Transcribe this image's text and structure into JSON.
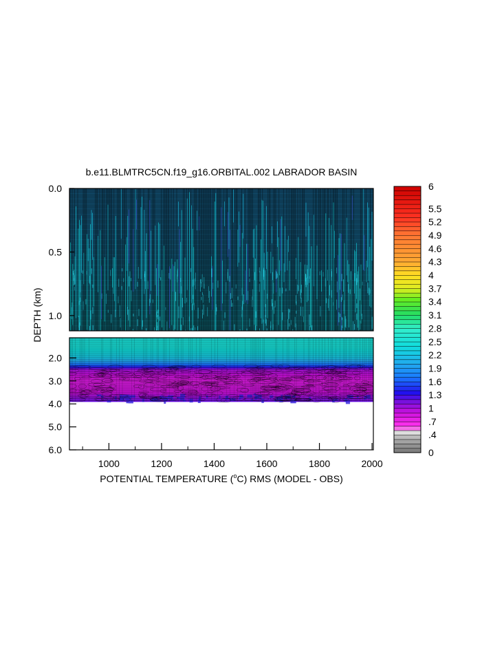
{
  "chart_data": {
    "type": "heatmap",
    "title": "b.e11.BLMTRC5CN.f19_g16.ORBITAL.002 LABRADOR BASIN",
    "xlabel_pre": "POTENTIAL TEMPERATURE (",
    "xlabel_unit_sup": "o",
    "xlabel_unit": "C",
    "xlabel_post": ") RMS (MODEL - OBS)",
    "ylabel": "DEPTH (km)",
    "xlim": [
      850,
      2005
    ],
    "x_ticks": [
      1000,
      1200,
      1400,
      1600,
      1800,
      2000
    ],
    "upper_panel": {
      "ylim": [
        0.0,
        1.12
      ],
      "y_ticks": [
        0.0,
        0.5,
        1.0
      ],
      "y_tick_labels": [
        "0.0",
        "0.5",
        "1.0"
      ]
    },
    "lower_panel": {
      "ylim": [
        1.12,
        6.0
      ],
      "y_ticks": [
        2.0,
        3.0,
        4.0,
        5.0,
        6.0
      ],
      "y_tick_labels": [
        "2.0",
        "3.0",
        "4.0",
        "5.0",
        "6.0"
      ],
      "data_bottom_depth": 3.9
    },
    "depth_profile": [
      {
        "depth": 0.0,
        "value": 2.0
      },
      {
        "depth": 0.5,
        "value": 2.1
      },
      {
        "depth": 1.0,
        "value": 2.4
      },
      {
        "depth": 1.12,
        "value": 2.5
      },
      {
        "depth": 1.5,
        "value": 2.5
      },
      {
        "depth": 2.0,
        "value": 2.2
      },
      {
        "depth": 2.3,
        "value": 1.6
      },
      {
        "depth": 2.5,
        "value": 1.0
      },
      {
        "depth": 3.0,
        "value": 0.8
      },
      {
        "depth": 3.5,
        "value": 0.9
      },
      {
        "depth": 3.9,
        "value": 1.2
      }
    ],
    "colorbar": {
      "min": 0,
      "max": 6,
      "tick_labels": [
        "6",
        "5.5",
        "5.2",
        "4.9",
        "4.6",
        "4.3",
        "4",
        "3.7",
        "3.4",
        "3.1",
        "2.8",
        "2.5",
        "2.2",
        "1.9",
        "1.6",
        "1.3",
        "1",
        ".7",
        ".4",
        "0"
      ],
      "tick_values": [
        6,
        5.5,
        5.2,
        4.9,
        4.6,
        4.3,
        4,
        3.7,
        3.4,
        3.1,
        2.8,
        2.5,
        2.2,
        1.9,
        1.6,
        1.3,
        1,
        0.7,
        0.4,
        0
      ],
      "color_stops": [
        {
          "v": 0.0,
          "c": "#777777"
        },
        {
          "v": 0.3,
          "c": "#aaaaaa"
        },
        {
          "v": 0.45,
          "c": "#dddddd"
        },
        {
          "v": 0.6,
          "c": "#ff33ee"
        },
        {
          "v": 0.9,
          "c": "#cc11dd"
        },
        {
          "v": 1.15,
          "c": "#7711dd"
        },
        {
          "v": 1.35,
          "c": "#2211ee"
        },
        {
          "v": 1.7,
          "c": "#1a7aff"
        },
        {
          "v": 2.0,
          "c": "#22aaee"
        },
        {
          "v": 2.4,
          "c": "#11dddd"
        },
        {
          "v": 2.8,
          "c": "#33eecc"
        },
        {
          "v": 3.1,
          "c": "#22dd66"
        },
        {
          "v": 3.45,
          "c": "#66ee22"
        },
        {
          "v": 3.7,
          "c": "#ddee22"
        },
        {
          "v": 4.0,
          "c": "#ffdd22"
        },
        {
          "v": 4.3,
          "c": "#ffaa33"
        },
        {
          "v": 4.9,
          "c": "#ff7733"
        },
        {
          "v": 5.3,
          "c": "#ff3322"
        },
        {
          "v": 6.0,
          "c": "#cc0000"
        }
      ]
    }
  }
}
